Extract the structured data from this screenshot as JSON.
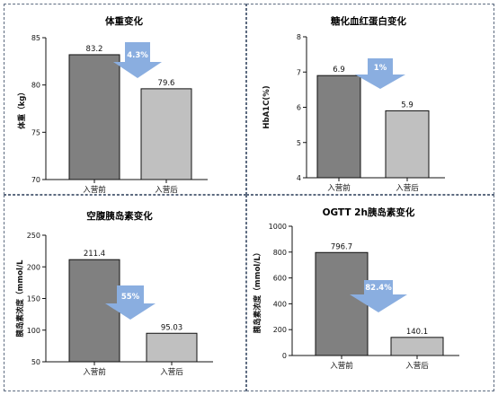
{
  "chart_data": [
    {
      "type": "bar",
      "title": "体重变化",
      "ylabel": "体重（kg）",
      "categories": [
        "入营前",
        "入营后"
      ],
      "values": [
        83.2,
        79.6
      ],
      "value_labels": [
        "83.2",
        "79.6"
      ],
      "ylim": [
        70,
        85
      ],
      "yticks": [
        70,
        75,
        80,
        85
      ],
      "change_label": "4.3%",
      "colors": [
        "#808080",
        "#c0c0c0"
      ],
      "arrow_color": "#8aaee0",
      "grid": false
    },
    {
      "type": "bar",
      "title": "糖化血红蛋白变化",
      "ylabel": "HbA1C(%)",
      "categories": [
        "入营前",
        "入营后"
      ],
      "values": [
        6.9,
        5.9
      ],
      "value_labels": [
        "6.9",
        "5.9"
      ],
      "ylim": [
        4,
        8
      ],
      "yticks": [
        4,
        5,
        6,
        7,
        8
      ],
      "change_label": "1%",
      "colors": [
        "#808080",
        "#c0c0c0"
      ],
      "arrow_color": "#8aaee0",
      "grid": false
    },
    {
      "type": "bar",
      "title": "空腹胰岛素变化",
      "ylabel": "胰岛素浓度（mmol/L",
      "categories": [
        "入营前",
        "入营后"
      ],
      "values": [
        211.4,
        95.03
      ],
      "value_labels": [
        "211.4",
        "95.03"
      ],
      "ylim": [
        50,
        250
      ],
      "yticks": [
        50,
        100,
        150,
        200,
        250
      ],
      "change_label": "55%",
      "colors": [
        "#808080",
        "#c0c0c0"
      ],
      "arrow_color": "#8aaee0",
      "grid": false
    },
    {
      "type": "bar",
      "title": "OGTT 2h胰岛素变化",
      "ylabel": "胰岛素浓度（mmol/L）",
      "categories": [
        "入营前",
        "入营后"
      ],
      "values": [
        796.7,
        140.1
      ],
      "value_labels": [
        "796.7",
        "140.1"
      ],
      "ylim": [
        0,
        1000
      ],
      "yticks": [
        0,
        200,
        400,
        600,
        800,
        1000
      ],
      "change_label": "82.4%",
      "colors": [
        "#808080",
        "#c0c0c0"
      ],
      "arrow_color": "#8aaee0",
      "grid": false
    }
  ]
}
